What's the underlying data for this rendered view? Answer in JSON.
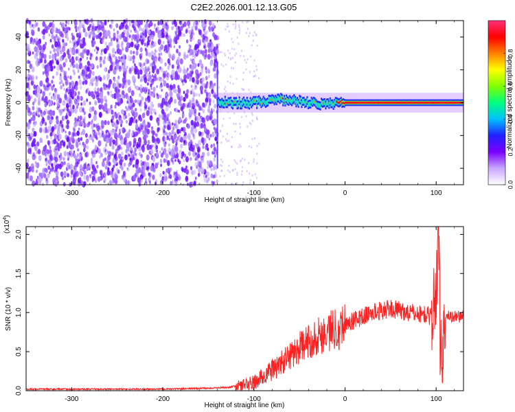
{
  "title": "C2E2.2026.001.12.13.G05",
  "chart_data": [
    {
      "type": "heatmap",
      "xlabel": "Height of straight line (km)",
      "ylabel": "Frequency (Hz)",
      "xlim": [
        -350,
        130
      ],
      "ylim": [
        -50,
        50
      ],
      "xticks": [
        -300,
        -200,
        -100,
        0,
        100
      ],
      "yticks": [
        -40,
        -20,
        0,
        20,
        40
      ],
      "colorbar": {
        "label": "Normalized spectral amplitude",
        "ticks": [
          "0.0",
          "0.2",
          "0.4",
          "0.6",
          "0.8"
        ],
        "colors": [
          "#ffffff",
          "#c8a6ff",
          "#7a00ff",
          "#2020ff",
          "#00c0ff",
          "#00ff80",
          "#80ff00",
          "#ffff00",
          "#ff8000",
          "#ff0000",
          "#ff2e7a"
        ]
      },
      "ridge": [
        {
          "x": -140,
          "y": 0
        },
        {
          "x": -120,
          "y": 0
        },
        {
          "x": -100,
          "y": 0
        },
        {
          "x": -70,
          "y": 2
        },
        {
          "x": -40,
          "y": 0
        },
        {
          "x": -20,
          "y": -1
        },
        {
          "x": 0,
          "y": 0
        },
        {
          "x": 50,
          "y": 0
        },
        {
          "x": 100,
          "y": 0
        },
        {
          "x": 130,
          "y": 0
        }
      ]
    },
    {
      "type": "line",
      "xlabel": "Height of straight line (km)",
      "ylabel": "SNR (10 * v/v)",
      "multiplier": "(x10",
      "multiplier_exp": "4",
      "xlim": [
        -350,
        130
      ],
      "ylim": [
        0,
        2.1
      ],
      "xticks": [
        -300,
        -200,
        -100,
        0,
        100
      ],
      "yticks": [
        "0.0",
        "0.5",
        "1.0",
        "1.5",
        "2.0"
      ],
      "color": "#ff2020",
      "series": [
        {
          "x": [
            -350,
            -300,
            -250,
            -200,
            -160,
            -130,
            -110,
            -100,
            -90,
            -70,
            -50,
            -30,
            -10,
            0,
            20,
            30,
            50,
            70,
            90,
            95,
            100,
            103,
            106,
            110,
            130
          ],
          "y": [
            0.02,
            0.02,
            0.02,
            0.02,
            0.03,
            0.04,
            0.08,
            0.1,
            0.18,
            0.35,
            0.55,
            0.7,
            0.8,
            0.85,
            0.95,
            1.0,
            1.05,
            1.0,
            0.97,
            0.95,
            1.25,
            2.0,
            0.3,
            0.95,
            0.95
          ]
        }
      ]
    }
  ]
}
